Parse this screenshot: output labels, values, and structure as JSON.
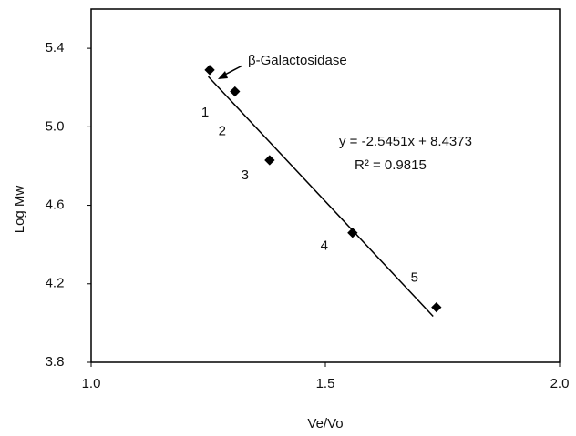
{
  "chart_data": {
    "type": "scatter",
    "xlabel": "Ve/Vo",
    "ylabel": "Log Mw",
    "x": [
      1.253,
      1.307,
      1.381,
      1.558,
      1.737
    ],
    "values": [
      5.29,
      5.18,
      4.83,
      4.46,
      4.08
    ],
    "point_labels": [
      "1",
      "2",
      "3",
      "4",
      "5"
    ],
    "color": "#000000",
    "xlim": [
      1,
      2
    ],
    "xticks": [
      {
        "value": 1,
        "label": "1.0"
      },
      {
        "value": 1.5,
        "label": "1.5"
      },
      {
        "value": 2,
        "label": "2.0"
      }
    ],
    "ylim": [
      3.8,
      5.6
    ],
    "yticks": [
      3.8,
      4.2,
      4.6,
      {
        "value": 5,
        "label": "5.0"
      },
      5.4
    ],
    "trendline": {
      "slope": -2.5451,
      "intercept": 8.4373,
      "x": [
        1.25,
        1.73
      ]
    },
    "equation": "y = -2.5451x + 8.4373",
    "r_squared": "R² = 0.9815",
    "annotation": "β-Galactosidase"
  }
}
